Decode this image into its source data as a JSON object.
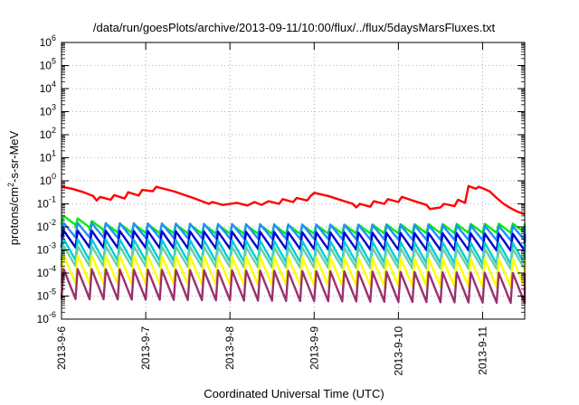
{
  "chart_data": {
    "type": "line",
    "title": "/data/run/goesPlots/archive/2013-09-11/10:00/flux/../flux/5daysMarsFluxes.txt",
    "xlabel": "Coordinated Universal Time (UTC)",
    "ylabel_parts": [
      "protons/cm",
      "2",
      "-s-sr-MeV"
    ],
    "yscale": "log",
    "ylim": [
      1e-06,
      1000000.0
    ],
    "ytick_exponents": [
      -6,
      -5,
      -4,
      -3,
      -2,
      -1,
      0,
      1,
      2,
      3,
      4,
      5,
      6
    ],
    "xlim": [
      "2013-09-06 00:00",
      "2013-09-11 12:00"
    ],
    "x_ticks": [
      "2013-9-6",
      "2013-9-7",
      "2013-9-8",
      "2013-9-9",
      "2013-9-10",
      "2013-9-11"
    ],
    "grid": true,
    "series": [
      {
        "color": "#ff0000",
        "points": [
          [
            "2013-09-06 00:00",
            0.55
          ],
          [
            "2013-09-06 03:00",
            0.45
          ],
          [
            "2013-09-06 06:00",
            0.33
          ],
          [
            "2013-09-06 09:00",
            0.22
          ],
          [
            "2013-09-06 10:00",
            0.14
          ],
          [
            "2013-09-06 11:00",
            0.2
          ],
          [
            "2013-09-06 14:00",
            0.15
          ],
          [
            "2013-09-06 15:00",
            0.24
          ],
          [
            "2013-09-06 18:00",
            0.17
          ],
          [
            "2013-09-06 19:00",
            0.32
          ],
          [
            "2013-09-06 22:00",
            0.23
          ],
          [
            "2013-09-06 23:00",
            0.4
          ],
          [
            "2013-09-07 02:00",
            0.35
          ],
          [
            "2013-09-07 03:00",
            0.55
          ],
          [
            "2013-09-07 08:00",
            0.35
          ],
          [
            "2013-09-07 14:00",
            0.17
          ],
          [
            "2013-09-07 18:00",
            0.1
          ],
          [
            "2013-09-07 19:00",
            0.12
          ],
          [
            "2013-09-07 22:00",
            0.09
          ],
          [
            "2013-09-08 02:00",
            0.11
          ],
          [
            "2013-09-08 05:00",
            0.085
          ],
          [
            "2013-09-08 07:00",
            0.12
          ],
          [
            "2013-09-08 09:00",
            0.09
          ],
          [
            "2013-09-08 11:00",
            0.13
          ],
          [
            "2013-09-08 14:00",
            0.1
          ],
          [
            "2013-09-08 15:00",
            0.16
          ],
          [
            "2013-09-08 18:00",
            0.12
          ],
          [
            "2013-09-08 19:00",
            0.18
          ],
          [
            "2013-09-08 22:00",
            0.14
          ],
          [
            "2013-09-08 23:00",
            0.22
          ],
          [
            "2013-09-09 00:00",
            0.3
          ],
          [
            "2013-09-09 04:00",
            0.22
          ],
          [
            "2013-09-09 08:00",
            0.14
          ],
          [
            "2013-09-09 11:00",
            0.1
          ],
          [
            "2013-09-09 12:00",
            0.07
          ],
          [
            "2013-09-09 13:00",
            0.1
          ],
          [
            "2013-09-09 16:00",
            0.075
          ],
          [
            "2013-09-09 17:00",
            0.13
          ],
          [
            "2013-09-09 20:00",
            0.1
          ],
          [
            "2013-09-09 21:00",
            0.16
          ],
          [
            "2013-09-10 00:00",
            0.12
          ],
          [
            "2013-09-10 01:00",
            0.2
          ],
          [
            "2013-09-10 04:00",
            0.14
          ],
          [
            "2013-09-10 08:00",
            0.09
          ],
          [
            "2013-09-10 09:00",
            0.06
          ],
          [
            "2013-09-10 12:00",
            0.07
          ],
          [
            "2013-09-10 13:00",
            0.1
          ],
          [
            "2013-09-10 16:00",
            0.08
          ],
          [
            "2013-09-10 17:00",
            0.15
          ],
          [
            "2013-09-10 19:00",
            0.11
          ],
          [
            "2013-09-10 20:00",
            0.6
          ],
          [
            "2013-09-10 22:00",
            0.45
          ],
          [
            "2013-09-10 23:00",
            0.55
          ],
          [
            "2013-09-11 02:00",
            0.35
          ],
          [
            "2013-09-11 04:00",
            0.18
          ],
          [
            "2013-09-11 06:00",
            0.1
          ],
          [
            "2013-09-11 08:00",
            0.065
          ],
          [
            "2013-09-11 10:00",
            0.045
          ],
          [
            "2013-09-11 12:00",
            0.035
          ]
        ]
      },
      {
        "color": "#00ee00",
        "peak": 0.022,
        "trough": 0.009,
        "trend": [
          [
            0,
            0.03
          ],
          [
            12,
            0.014
          ],
          [
            24,
            0.013
          ],
          [
            60,
            0.012
          ],
          [
            132,
            0.014
          ]
        ]
      },
      {
        "color": "#1e90ff",
        "peak": 0.012,
        "trough": 0.0028,
        "trend": [
          [
            0,
            0.015
          ],
          [
            132,
            0.011
          ]
        ]
      },
      {
        "color": "#0000cd",
        "peak": 0.006,
        "trough": 0.0011,
        "trend": [
          [
            0,
            0.007
          ],
          [
            132,
            0.005
          ]
        ]
      },
      {
        "color": "#00ced1",
        "peak": 0.0025,
        "trough": 0.0003,
        "trend": [
          [
            0,
            0.003
          ],
          [
            132,
            0.002
          ]
        ]
      },
      {
        "color": "#66cdaa",
        "peak": 0.0012,
        "trough": 0.00016,
        "trend": [
          [
            0,
            0.0015
          ],
          [
            132,
            0.0011
          ]
        ]
      },
      {
        "color": "#ffff00",
        "peak": 0.0005,
        "trough": 3e-05,
        "trend": [
          [
            0,
            0.0006
          ],
          [
            132,
            0.0004
          ]
        ]
      },
      {
        "color": "#9b3070",
        "peak": 0.00012,
        "trough": 6e-06,
        "trend": [
          [
            0,
            0.00015
          ],
          [
            132,
            0.0001
          ]
        ]
      }
    ],
    "sawtooth_period_hours": 4
  }
}
